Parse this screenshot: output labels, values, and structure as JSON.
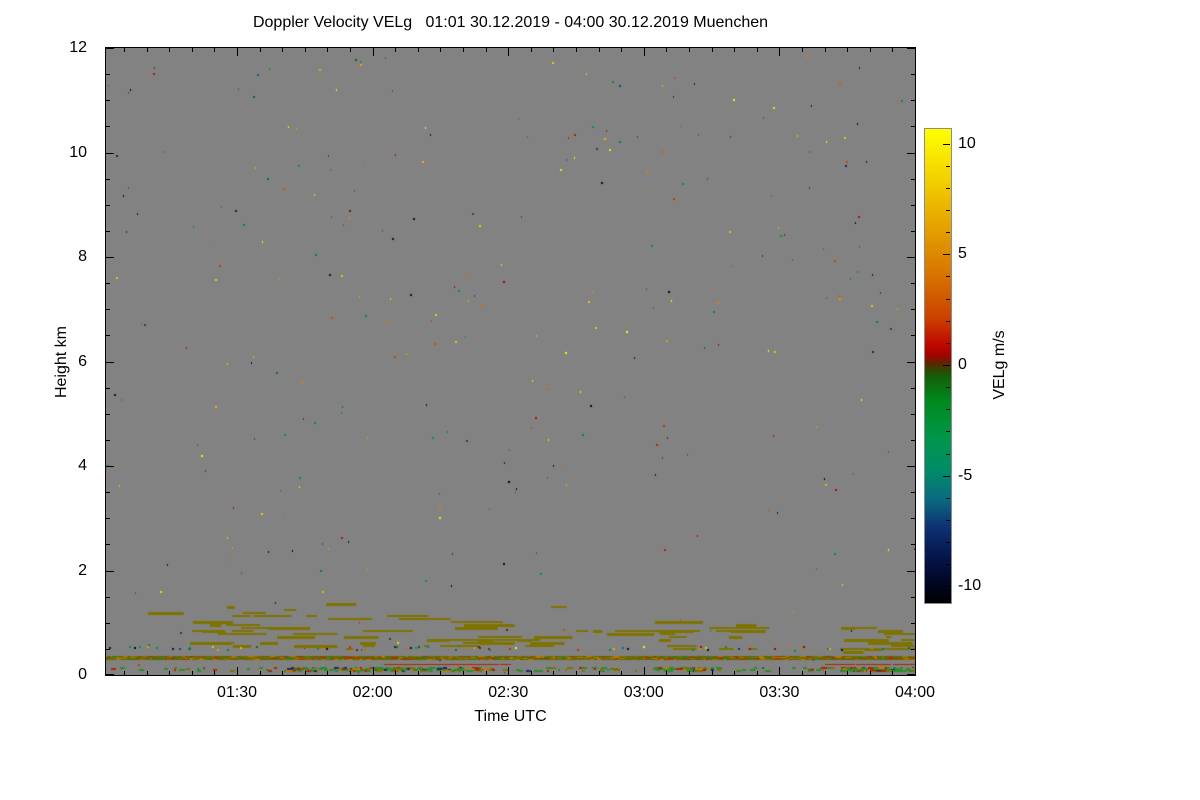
{
  "chart_data": {
    "type": "heatmap",
    "title": "Doppler Velocity VELg   01:01 30.12.2019 - 04:00 30.12.2019 Muenchen",
    "xlabel": "Time UTC",
    "ylabel": "Height km",
    "x_range_minutes": [
      61,
      240
    ],
    "x_major_ticks": [
      {
        "minute": 90,
        "label": "01:30"
      },
      {
        "minute": 120,
        "label": "02:00"
      },
      {
        "minute": 150,
        "label": "02:30"
      },
      {
        "minute": 180,
        "label": "03:00"
      },
      {
        "minute": 210,
        "label": "03:30"
      },
      {
        "minute": 240,
        "label": "04:00"
      }
    ],
    "x_minor_step_minutes": 5,
    "y_range_km": [
      0,
      12
    ],
    "y_major_ticks": [
      {
        "km": 0,
        "label": "0"
      },
      {
        "km": 2,
        "label": "2"
      },
      {
        "km": 4,
        "label": "4"
      },
      {
        "km": 6,
        "label": "6"
      },
      {
        "km": 8,
        "label": "8"
      },
      {
        "km": 10,
        "label": "10"
      },
      {
        "km": 12,
        "label": "12"
      }
    ],
    "y_minor_step_km": 0.5,
    "background_color": "#828282",
    "grid": false,
    "colorbar": {
      "label": "VELg m/s",
      "range": [
        -10.7,
        10.7
      ],
      "major_ticks": [
        {
          "value": 10,
          "label": "10"
        },
        {
          "value": 5,
          "label": "5"
        },
        {
          "value": 0,
          "label": "0"
        },
        {
          "value": -5,
          "label": "-5"
        },
        {
          "value": -10,
          "label": "-10"
        }
      ],
      "minor_step": 1,
      "stops": [
        {
          "p": 0.0,
          "color": "#FFFF00"
        },
        {
          "p": 0.08,
          "color": "#F6DC00"
        },
        {
          "p": 0.18,
          "color": "#E8AE00"
        },
        {
          "p": 0.3,
          "color": "#D87800"
        },
        {
          "p": 0.4,
          "color": "#CB4000"
        },
        {
          "p": 0.455,
          "color": "#BE0800"
        },
        {
          "p": 0.478,
          "color": "#A00300"
        },
        {
          "p": 0.497,
          "color": "#522C00"
        },
        {
          "p": 0.52,
          "color": "#145E08"
        },
        {
          "p": 0.575,
          "color": "#008A1E"
        },
        {
          "p": 0.65,
          "color": "#00964A"
        },
        {
          "p": 0.72,
          "color": "#008C68"
        },
        {
          "p": 0.78,
          "color": "#0A6B80"
        },
        {
          "p": 0.84,
          "color": "#0E3174"
        },
        {
          "p": 0.9,
          "color": "#05164D"
        },
        {
          "p": 0.95,
          "color": "#020829"
        },
        {
          "p": 1.0,
          "color": "#000000"
        }
      ]
    },
    "noise_speckles": {
      "seed": 1337,
      "count": 315
    },
    "streak_color": "#7E7200",
    "streak_clusters": [
      [
        78,
        108,
        0.5,
        1.35,
        26
      ],
      [
        113,
        125,
        0.5,
        0.9,
        6
      ],
      [
        130,
        160,
        0.55,
        1.15,
        20
      ],
      [
        161,
        180,
        0.75,
        0.95,
        5
      ],
      [
        183,
        206,
        0.5,
        1.0,
        16
      ],
      [
        222,
        240,
        0.45,
        1.0,
        18
      ],
      [
        61,
        240,
        0.4,
        1.4,
        10
      ]
    ],
    "bands": {
      "solid_band_km": 0.33,
      "solid_band_color": "#6E6400",
      "solid_band_mix": [
        "#A83200",
        "#2E7D1E",
        "#B87800",
        "#7E7200"
      ],
      "solid_band_mix_count": 520,
      "red_row_km": 0.22,
      "red_row_color": "#B32400",
      "red_row_patches": [
        [
          122,
          150,
          60
        ],
        [
          220,
          240,
          45
        ]
      ],
      "scatter_row_km": 0.5,
      "scatter_row_count": 60,
      "bottom_row_km": 0.12,
      "bottom_row_colors": [
        "#2E8B2E",
        "#B32400",
        "#7E7200",
        "#1A2A6E",
        "#C87800"
      ],
      "bottom_row_weights": [
        0.55,
        0.15,
        0.15,
        0.07,
        0.08
      ],
      "bottom_row_base_count": 120,
      "bottom_row_patches": [
        [
          101,
          144,
          150
        ],
        [
          182,
          195,
          40
        ],
        [
          223,
          240,
          85
        ]
      ]
    }
  }
}
